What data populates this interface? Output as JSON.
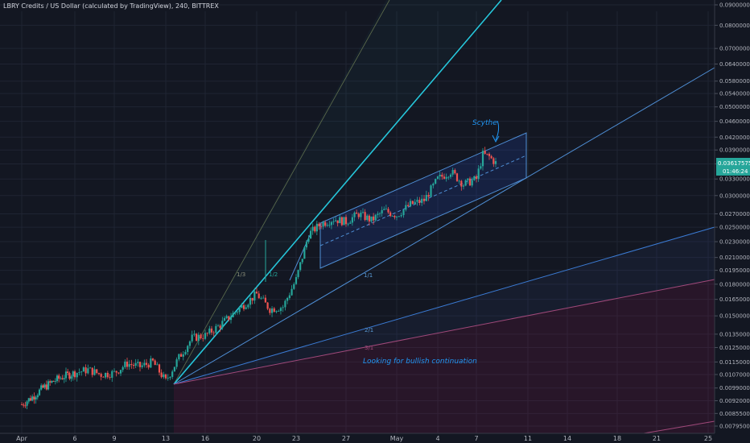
{
  "chart_data": {
    "type": "candlestick",
    "title": "LBRY Credits / US Dollar (calculated by TradingView), 240, BITTREX",
    "y_scale": "log",
    "ylim": [
      0.0078,
      0.0952
    ],
    "y_ticks": [
      "0.09000000",
      "0.08000000",
      "0.07000000",
      "0.06400000",
      "0.05800000",
      "0.05400000",
      "0.05000000",
      "0.04600000",
      "0.04200000",
      "0.03900000",
      "0.03600000",
      "0.03300000",
      "0.03000000",
      "0.02700000",
      "0.02500000",
      "0.02300000",
      "0.02100000",
      "0.01950000",
      "0.01800000",
      "0.01650000",
      "0.01500000",
      "0.01350000",
      "0.01250000",
      "0.01150000",
      "0.01070000",
      "0.00990000",
      "0.00920000",
      "0.00855000",
      "0.00795000"
    ],
    "x_ticks": [
      "Apr",
      "6",
      "9",
      "13",
      "16",
      "20",
      "23",
      "27",
      "May",
      "4",
      "7",
      "11",
      "14",
      "18",
      "21",
      "25"
    ],
    "last_price": "0.03617575",
    "countdown": "01:46:24",
    "annotations": {
      "scythe": "Scythe",
      "bullish": "Looking for bullish continuation",
      "fan_1_3": "1/3",
      "fan_1_2": "1/2",
      "fan_1_1": "1/1",
      "fan_2_1": "2/1",
      "fan_3_1": "3/1"
    },
    "price_path": [
      [
        "Apr 1",
        0.009
      ],
      [
        "Apr 2",
        0.0094
      ],
      [
        "Apr 3",
        0.0099
      ],
      [
        "Apr 4",
        0.0103
      ],
      [
        "Apr 5",
        0.0106
      ],
      [
        "Apr 6",
        0.0108
      ],
      [
        "Apr 7",
        0.011
      ],
      [
        "Apr 8",
        0.0107
      ],
      [
        "Apr 9",
        0.0108
      ],
      [
        "Apr 10",
        0.0114
      ],
      [
        "Apr 11",
        0.0112
      ],
      [
        "Apr 12",
        0.0115
      ],
      [
        "Apr 13",
        0.0103
      ],
      [
        "Apr 14",
        0.0118
      ],
      [
        "Apr 15",
        0.0132
      ],
      [
        "Apr 16",
        0.0134
      ],
      [
        "Apr 17",
        0.0141
      ],
      [
        "Apr 18",
        0.015
      ],
      [
        "Apr 19",
        0.016
      ],
      [
        "Apr 20",
        0.017
      ],
      [
        "Apr 21",
        0.0156
      ],
      [
        "Apr 22",
        0.0158
      ],
      [
        "Apr 23",
        0.0185
      ],
      [
        "Apr 24",
        0.024
      ],
      [
        "Apr 25",
        0.0255
      ],
      [
        "Apr 26",
        0.0262
      ],
      [
        "Apr 27",
        0.0258
      ],
      [
        "Apr 28",
        0.027
      ],
      [
        "Apr 29",
        0.026
      ],
      [
        "Apr 30",
        0.0275
      ],
      [
        "May 1",
        0.0268
      ],
      [
        "May 2",
        0.0285
      ],
      [
        "May 3",
        0.0292
      ],
      [
        "May 4",
        0.033
      ],
      [
        "May 5",
        0.0345
      ],
      [
        "May 6",
        0.032
      ],
      [
        "May 7",
        0.033
      ],
      [
        "May 7.5",
        0.038
      ],
      [
        "May 8",
        0.0375
      ],
      [
        "May 8.5",
        0.0362
      ]
    ]
  }
}
